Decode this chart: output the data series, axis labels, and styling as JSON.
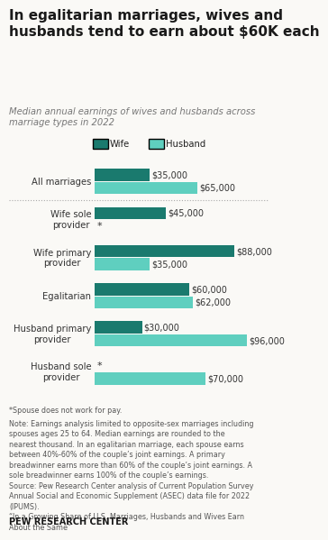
{
  "title": "In egalitarian marriages, wives and\nhusbands tend to earn about $60K each",
  "subtitle": "Median annual earnings of wives and husbands across\nmarriage types in 2022",
  "categories": [
    "All marriages",
    "Wife sole\nprovider",
    "Wife primary\nprovider",
    "Egalitarian",
    "Husband primary\nprovider",
    "Husband sole\nprovider"
  ],
  "wife_values": [
    35000,
    45000,
    88000,
    60000,
    30000,
    null
  ],
  "husband_values": [
    65000,
    null,
    35000,
    62000,
    96000,
    70000
  ],
  "wife_color": "#1a7a6e",
  "husband_color": "#5fcfbf",
  "bar_height": 0.32,
  "xlim": [
    0,
    108000
  ],
  "footnote_line1": "*Spouse does not work for pay.",
  "footnote_rest": "Note: Earnings analysis limited to opposite-sex marriages including\nspouses ages 25 to 64. Median earnings are rounded to the\nnearest thousand. In an egalitarian marriage, each spouse earns\nbetween 40%-60% of the couple’s joint earnings. A primary\nbreadwinner earns more than 60% of the couple’s joint earnings. A\nsole breadwinner earns 100% of the couple’s earnings.\nSource: Pew Research Center analysis of Current Population Survey\nAnnual Social and Economic Supplement (ASEC) data file for 2022\n(IPUMS).\n“In a Growing Share of U.S. Marriages, Husbands and Wives Earn\nAbout the Same”",
  "source_bold": "PEW RESEARCH CENTER",
  "background_color": "#faf9f6",
  "text_color": "#333333",
  "subtitle_color": "#777777",
  "footnote_color": "#555555"
}
